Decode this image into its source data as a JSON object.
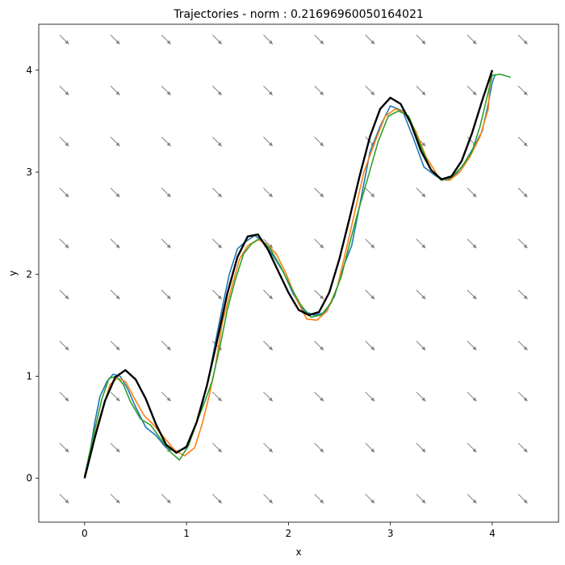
{
  "chart_data": {
    "type": "line",
    "title": "Trajectories - norm : 0.21696960050164021",
    "xlabel": "x",
    "ylabel": "y",
    "xlim": [
      -0.45,
      4.65
    ],
    "ylim": [
      -0.43,
      4.45
    ],
    "xticks": [
      0,
      1,
      2,
      3,
      4
    ],
    "yticks": [
      0,
      1,
      2,
      3,
      4
    ],
    "grid": false,
    "colors": {
      "reference": "#000000",
      "series1": "#1f77b4",
      "series2": "#ff7f0e",
      "series3": "#2ca02c",
      "quiver": "#808080"
    },
    "quiver": {
      "x": [
        -0.2,
        0.3,
        0.8,
        1.3,
        1.8,
        2.3,
        2.8,
        3.3,
        3.8,
        4.3
      ],
      "y": [
        -0.2,
        0.3,
        0.8,
        1.3,
        1.8,
        2.3,
        2.8,
        3.3,
        3.8,
        4.3
      ],
      "u": 1,
      "v": -1
    },
    "reference": {
      "x": [
        0.0,
        0.1,
        0.2,
        0.3,
        0.4,
        0.5,
        0.6,
        0.7,
        0.8,
        0.9,
        1.0,
        1.1,
        1.2,
        1.3,
        1.4,
        1.5,
        1.6,
        1.7,
        1.8,
        1.9,
        2.0,
        2.1,
        2.2,
        2.3,
        2.4,
        2.5,
        2.6,
        2.7,
        2.8,
        2.9,
        3.0,
        3.1,
        3.2,
        3.3,
        3.4,
        3.5,
        3.6,
        3.7,
        3.8,
        3.9,
        4.0
      ],
      "y": [
        0.0,
        0.4,
        0.76,
        0.99,
        1.06,
        0.97,
        0.78,
        0.53,
        0.33,
        0.25,
        0.31,
        0.55,
        0.91,
        1.35,
        1.81,
        2.17,
        2.37,
        2.39,
        2.24,
        2.03,
        1.82,
        1.65,
        1.6,
        1.63,
        1.82,
        2.15,
        2.55,
        2.97,
        3.35,
        3.62,
        3.73,
        3.67,
        3.48,
        3.21,
        3.02,
        2.93,
        2.96,
        3.11,
        3.38,
        3.7,
        4.0
      ]
    },
    "series": [
      {
        "x": [
          0.0,
          0.06,
          0.1,
          0.15,
          0.22,
          0.28,
          0.35,
          0.42,
          0.5,
          0.6,
          0.7,
          0.8,
          0.9,
          1.0,
          1.08,
          1.15,
          1.22,
          1.3,
          1.36,
          1.42,
          1.5,
          1.58,
          1.67,
          1.75,
          1.85,
          1.95,
          2.05,
          2.15,
          2.25,
          2.35,
          2.45,
          2.55,
          2.62,
          2.7,
          2.8,
          2.9,
          3.0,
          3.12,
          3.22,
          3.33,
          3.45,
          3.55,
          3.62,
          3.72,
          3.82,
          3.9,
          3.95,
          4.0,
          4.03
        ],
        "y": [
          0.02,
          0.3,
          0.55,
          0.8,
          0.95,
          1.02,
          1.0,
          0.88,
          0.7,
          0.5,
          0.42,
          0.3,
          0.26,
          0.3,
          0.5,
          0.7,
          1.0,
          1.42,
          1.72,
          2.0,
          2.25,
          2.32,
          2.38,
          2.32,
          2.18,
          2.02,
          1.8,
          1.64,
          1.6,
          1.62,
          1.78,
          2.1,
          2.28,
          2.68,
          3.2,
          3.45,
          3.65,
          3.6,
          3.35,
          3.05,
          2.96,
          2.92,
          2.95,
          3.08,
          3.25,
          3.4,
          3.62,
          3.88,
          3.96
        ]
      },
      {
        "x": [
          0.0,
          0.07,
          0.12,
          0.18,
          0.25,
          0.32,
          0.4,
          0.48,
          0.58,
          0.68,
          0.78,
          0.88,
          0.98,
          1.08,
          1.15,
          1.22,
          1.28,
          1.35,
          1.45,
          1.52,
          1.6,
          1.7,
          1.78,
          1.88,
          1.98,
          2.08,
          2.18,
          2.28,
          2.38,
          2.48,
          2.58,
          2.66,
          2.74,
          2.85,
          2.95,
          3.05,
          3.15,
          3.25,
          3.35,
          3.48,
          3.58,
          3.68,
          3.78,
          3.88,
          3.96,
          3.98,
          4.0
        ],
        "y": [
          0.03,
          0.28,
          0.5,
          0.7,
          0.92,
          0.98,
          0.95,
          0.8,
          0.62,
          0.52,
          0.4,
          0.28,
          0.22,
          0.3,
          0.52,
          0.8,
          1.08,
          1.52,
          1.9,
          2.15,
          2.28,
          2.34,
          2.3,
          2.2,
          2.0,
          1.75,
          1.56,
          1.55,
          1.64,
          1.88,
          2.3,
          2.65,
          3.0,
          3.3,
          3.55,
          3.62,
          3.58,
          3.4,
          3.15,
          2.94,
          2.92,
          3.0,
          3.15,
          3.35,
          3.62,
          3.9,
          4.0
        ]
      },
      {
        "x": [
          0.0,
          0.05,
          0.11,
          0.17,
          0.24,
          0.31,
          0.38,
          0.45,
          0.55,
          0.65,
          0.75,
          0.85,
          0.93,
          1.02,
          1.1,
          1.18,
          1.25,
          1.33,
          1.4,
          1.48,
          1.56,
          1.64,
          1.72,
          1.82,
          1.92,
          2.02,
          2.12,
          2.22,
          2.32,
          2.42,
          2.52,
          2.6,
          2.68,
          2.78,
          2.88,
          2.98,
          3.08,
          3.18,
          3.28,
          3.4,
          3.5,
          3.6,
          3.7,
          3.8,
          3.88,
          3.94,
          4.0,
          4.08,
          4.18
        ],
        "y": [
          0.01,
          0.25,
          0.52,
          0.78,
          0.98,
          1.0,
          0.92,
          0.75,
          0.58,
          0.52,
          0.38,
          0.25,
          0.18,
          0.32,
          0.55,
          0.75,
          0.95,
          1.3,
          1.65,
          1.95,
          2.2,
          2.3,
          2.35,
          2.25,
          2.08,
          1.88,
          1.7,
          1.58,
          1.6,
          1.72,
          1.98,
          2.3,
          2.6,
          2.95,
          3.3,
          3.55,
          3.6,
          3.55,
          3.3,
          3.02,
          2.92,
          2.95,
          3.05,
          3.2,
          3.45,
          3.7,
          3.95,
          3.96,
          3.93
        ]
      }
    ]
  }
}
